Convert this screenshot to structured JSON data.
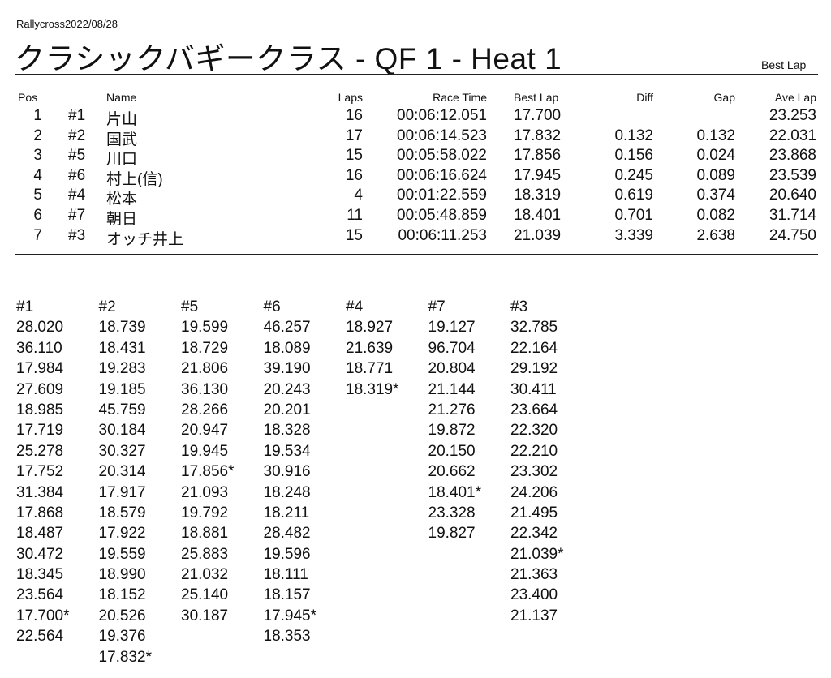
{
  "header": {
    "date_line": "Rallycross2022/08/28",
    "title": "クラシックバギークラス  -  QF 1  -  Heat 1",
    "sort_label": "Best Lap"
  },
  "results": {
    "columns": {
      "pos": "Pos",
      "car": "",
      "name": "Name",
      "laps": "Laps",
      "race_time": "Race Time",
      "best_lap": "Best Lap",
      "diff": "Diff",
      "gap": "Gap",
      "ave_lap": "Ave Lap"
    },
    "rows": [
      {
        "pos": "1",
        "car": "#1",
        "name": "片山",
        "laps": "16",
        "race_time": "00:06:12.051",
        "best_lap": "17.700",
        "diff": "",
        "gap": "",
        "ave_lap": "23.253"
      },
      {
        "pos": "2",
        "car": "#2",
        "name": "国武",
        "laps": "17",
        "race_time": "00:06:14.523",
        "best_lap": "17.832",
        "diff": "0.132",
        "gap": "0.132",
        "ave_lap": "22.031"
      },
      {
        "pos": "3",
        "car": "#5",
        "name": "川口",
        "laps": "15",
        "race_time": "00:05:58.022",
        "best_lap": "17.856",
        "diff": "0.156",
        "gap": "0.024",
        "ave_lap": "23.868"
      },
      {
        "pos": "4",
        "car": "#6",
        "name": "村上(信)",
        "laps": "16",
        "race_time": "00:06:16.624",
        "best_lap": "17.945",
        "diff": "0.245",
        "gap": "0.089",
        "ave_lap": "23.539"
      },
      {
        "pos": "5",
        "car": "#4",
        "name": "松本",
        "laps": "4",
        "race_time": "00:01:22.559",
        "best_lap": "18.319",
        "diff": "0.619",
        "gap": "0.374",
        "ave_lap": "20.640"
      },
      {
        "pos": "6",
        "car": "#7",
        "name": "朝日",
        "laps": "11",
        "race_time": "00:05:48.859",
        "best_lap": "18.401",
        "diff": "0.701",
        "gap": "0.082",
        "ave_lap": "31.714"
      },
      {
        "pos": "7",
        "car": "#3",
        "name": "オッチ井上",
        "laps": "15",
        "race_time": "00:06:11.253",
        "best_lap": "21.039",
        "diff": "3.339",
        "gap": "2.638",
        "ave_lap": "24.750"
      }
    ]
  },
  "lap_times": [
    {
      "car": "#1",
      "laps": [
        "28.020",
        "36.110",
        "17.984",
        "27.609",
        "18.985",
        "17.719",
        "25.278",
        "17.752",
        "31.384",
        "17.868",
        "18.487",
        "30.472",
        "18.345",
        "23.564",
        "17.700*",
        "22.564"
      ]
    },
    {
      "car": "#2",
      "laps": [
        "18.739",
        "18.431",
        "19.283",
        "19.185",
        "45.759",
        "30.184",
        "30.327",
        "20.314",
        "17.917",
        "18.579",
        "17.922",
        "19.559",
        "18.990",
        "18.152",
        "20.526",
        "19.376",
        "17.832*"
      ]
    },
    {
      "car": "#5",
      "laps": [
        "19.599",
        "18.729",
        "21.806",
        "36.130",
        "28.266",
        "20.947",
        "19.945",
        "17.856*",
        "21.093",
        "19.792",
        "18.881",
        "25.883",
        "21.032",
        "25.140",
        "30.187"
      ]
    },
    {
      "car": "#6",
      "laps": [
        "46.257",
        "18.089",
        "39.190",
        "20.243",
        "20.201",
        "18.328",
        "19.534",
        "30.916",
        "18.248",
        "18.211",
        "28.482",
        "19.596",
        "18.111",
        "18.157",
        "17.945*",
        "18.353"
      ]
    },
    {
      "car": "#4",
      "laps": [
        "18.927",
        "21.639",
        "18.771",
        "18.319*"
      ]
    },
    {
      "car": "#7",
      "laps": [
        "19.127",
        "96.704",
        "20.804",
        "21.144",
        "21.276",
        "19.872",
        "20.150",
        "20.662",
        "18.401*",
        "23.328",
        "19.827"
      ]
    },
    {
      "car": "#3",
      "laps": [
        "32.785",
        "22.164",
        "29.192",
        "30.411",
        "23.664",
        "22.320",
        "22.210",
        "23.302",
        "24.206",
        "21.495",
        "22.342",
        "21.039*",
        "21.363",
        "23.400",
        "21.137"
      ]
    }
  ]
}
